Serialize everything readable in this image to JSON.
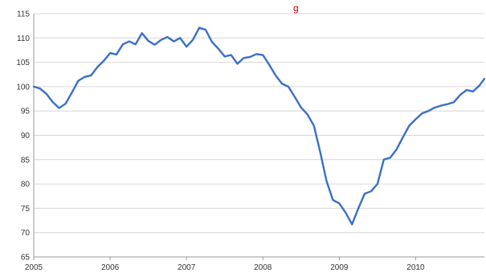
{
  "chart_data": {
    "type": "line",
    "title": "g",
    "xlabel": "",
    "ylabel": "",
    "xlim": [
      2005,
      2010.9
    ],
    "ylim": [
      65,
      115
    ],
    "grid": true,
    "legend": "none",
    "y_ticks": [
      65,
      70,
      75,
      80,
      85,
      90,
      95,
      100,
      105,
      110,
      115
    ],
    "x_ticks": [
      {
        "value": 2005,
        "label": "2005"
      },
      {
        "value": 2006,
        "label": "2006"
      },
      {
        "value": 2007,
        "label": "2007"
      },
      {
        "value": 2008,
        "label": "2008"
      },
      {
        "value": 2009,
        "label": "2009"
      },
      {
        "value": 2010,
        "label": "2010"
      }
    ],
    "series": [
      {
        "color": "#3a6fc8",
        "x": [
          2005.0,
          2005.083,
          2005.167,
          2005.25,
          2005.333,
          2005.417,
          2005.5,
          2005.583,
          2005.667,
          2005.75,
          2005.833,
          2005.917,
          2006.0,
          2006.083,
          2006.167,
          2006.25,
          2006.333,
          2006.417,
          2006.5,
          2006.583,
          2006.667,
          2006.75,
          2006.833,
          2006.917,
          2007.0,
          2007.083,
          2007.167,
          2007.25,
          2007.333,
          2007.417,
          2007.5,
          2007.583,
          2007.667,
          2007.75,
          2007.833,
          2007.917,
          2008.0,
          2008.083,
          2008.167,
          2008.25,
          2008.333,
          2008.417,
          2008.5,
          2008.583,
          2008.667,
          2008.75,
          2008.833,
          2008.917,
          2009.0,
          2009.083,
          2009.167,
          2009.25,
          2009.333,
          2009.417,
          2009.5,
          2009.583,
          2009.667,
          2009.75,
          2009.833,
          2009.917,
          2010.0,
          2010.083,
          2010.167,
          2010.25,
          2010.333,
          2010.417,
          2010.5,
          2010.583,
          2010.667,
          2010.75,
          2010.833,
          2010.9
        ],
        "values": [
          100.0,
          99.6,
          98.5,
          96.8,
          95.6,
          96.5,
          98.8,
          101.2,
          102.0,
          102.3,
          104.0,
          105.3,
          106.9,
          106.6,
          108.7,
          109.3,
          108.7,
          111.0,
          109.4,
          108.6,
          109.6,
          110.2,
          109.3,
          110.0,
          108.2,
          109.6,
          112.1,
          111.7,
          109.2,
          107.8,
          106.2,
          106.5,
          104.7,
          105.9,
          106.1,
          106.7,
          106.5,
          104.5,
          102.3,
          100.6,
          100.0,
          97.9,
          95.7,
          94.3,
          92.0,
          86.6,
          80.6,
          76.7,
          76.0,
          74.1,
          71.7,
          75.0,
          78.0,
          78.5,
          80.0,
          85.0,
          85.4,
          87.1,
          89.6,
          92.0,
          93.3,
          94.5,
          95.0,
          95.7,
          96.1,
          96.4,
          96.8,
          98.3,
          99.3,
          99.0,
          100.2,
          101.6
        ]
      }
    ]
  }
}
